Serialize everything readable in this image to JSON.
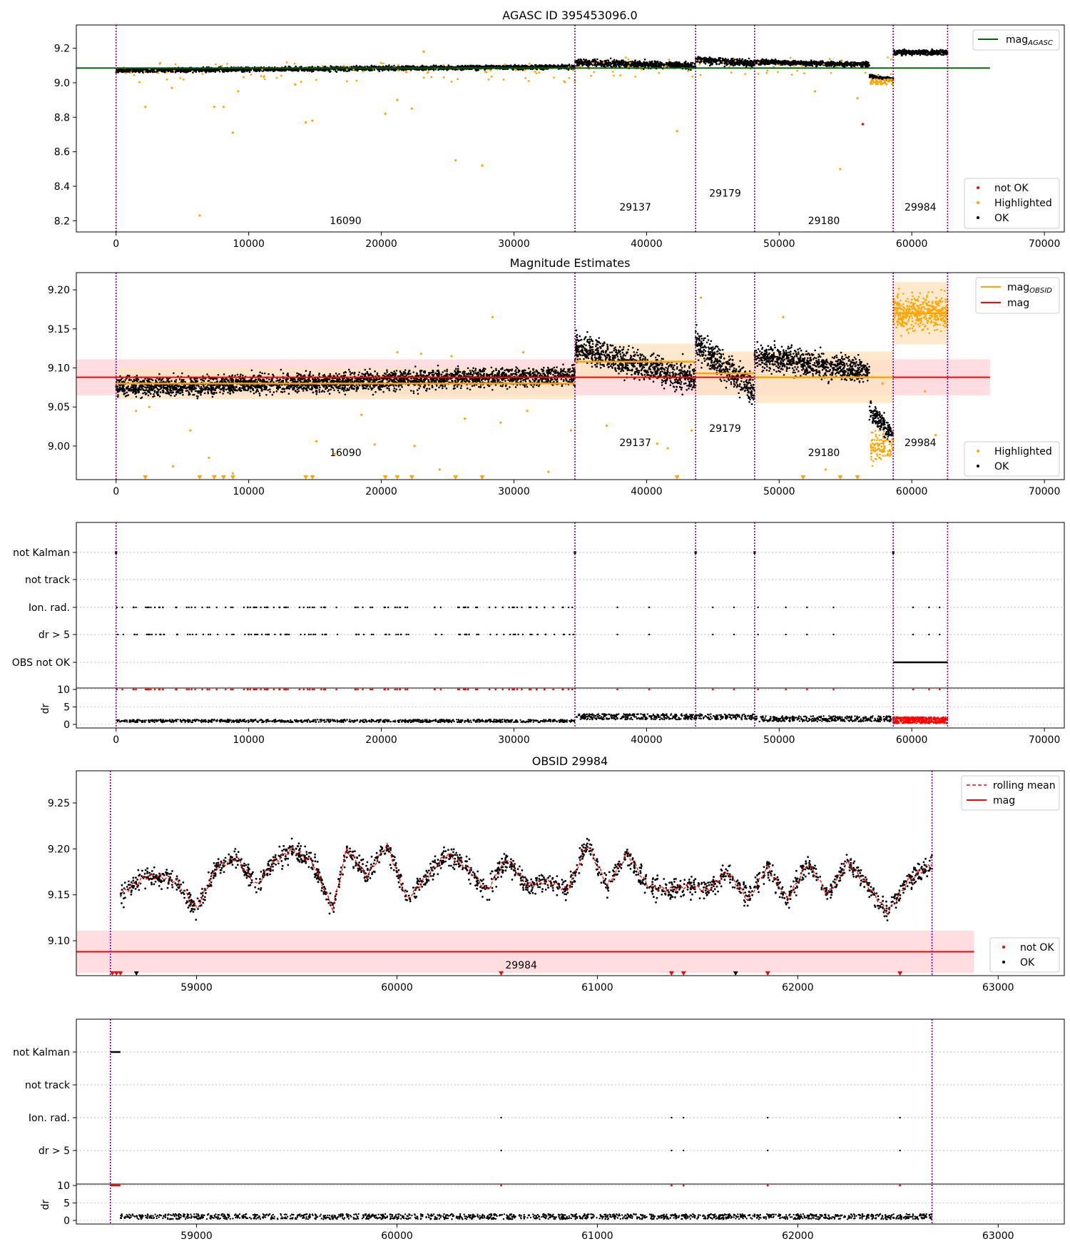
{
  "figure": {
    "title_top": "AGASC ID 395453096.0",
    "title_mag": "Magnitude Estimates",
    "title_obsid": "OBSID 29984"
  },
  "legend": {
    "mag_agasc": "mag",
    "mag_agasc_sub": "AGASC",
    "mag_obsid": "mag",
    "mag_obsid_sub": "OBSID",
    "mag": "mag",
    "not_ok": "not OK",
    "highlighted": "Highlighted",
    "ok": "OK",
    "rolling_mean": "rolling mean"
  },
  "colors": {
    "ok": "#000000",
    "highlighted": "#ffa500",
    "not_ok": "#ff0000",
    "agasc_line": "#006400",
    "mag_line": "#ff0000",
    "obsid_line": "#ffa500",
    "obs_boundary": "#800080",
    "mag_band": "#ffdde0"
  },
  "flags": {
    "labels": [
      "not Kalman",
      "not track",
      "Ion. rad.",
      "dr > 5",
      "OBS not OK"
    ],
    "labels_zoom": [
      "not Kalman",
      "not track",
      "Ion. rad.",
      "dr > 5"
    ],
    "dr_label": "dr"
  },
  "chart_data": [
    {
      "type": "scatter",
      "title": "AGASC ID 395453096.0",
      "xlabel": "",
      "ylabel": "",
      "xlim": [
        -3000,
        71500
      ],
      "ylim": [
        8.135,
        9.335
      ],
      "xticks": [
        0,
        10000,
        20000,
        30000,
        40000,
        50000,
        60000,
        70000
      ],
      "yticks": [
        8.2,
        8.4,
        8.6,
        8.8,
        9.0,
        9.2
      ],
      "ytick_labels": [
        "8.2",
        "8.4",
        "8.6",
        "8.8",
        "9.0",
        "9.2"
      ],
      "mag_agasc": 9.085,
      "obs_boundaries": [
        0,
        34600,
        43700,
        48150,
        58600,
        62700
      ],
      "observations": [
        {
          "obsid": "16090",
          "start": 0,
          "stop": 34600,
          "mag": 9.08,
          "label_y": 8.18
        },
        {
          "obsid": "29137",
          "start": 34600,
          "stop": 43700,
          "mag": 9.108,
          "label_y": 8.26
        },
        {
          "obsid": "29179",
          "start": 43700,
          "stop": 48150,
          "mag": 9.093,
          "label_y": 8.34
        },
        {
          "obsid": "29180",
          "start": 48150,
          "stop": 58600,
          "mag": 9.088,
          "label_y": 8.18
        },
        {
          "obsid": "29984",
          "start": 58600,
          "stop": 62700,
          "mag": 9.17,
          "label_y": 8.26
        }
      ],
      "highlighted_outliers": [
        {
          "x": 2200,
          "y": 8.86
        },
        {
          "x": 6300,
          "y": 8.23
        },
        {
          "x": 7400,
          "y": 8.86
        },
        {
          "x": 8100,
          "y": 8.86
        },
        {
          "x": 8800,
          "y": 8.71
        },
        {
          "x": 9200,
          "y": 8.95
        },
        {
          "x": 14300,
          "y": 8.77
        },
        {
          "x": 14800,
          "y": 8.78
        },
        {
          "x": 20300,
          "y": 8.82
        },
        {
          "x": 21200,
          "y": 8.9
        },
        {
          "x": 22300,
          "y": 8.85
        },
        {
          "x": 25600,
          "y": 8.55
        },
        {
          "x": 27600,
          "y": 8.52
        },
        {
          "x": 42300,
          "y": 8.72
        },
        {
          "x": 54600,
          "y": 8.5
        },
        {
          "x": 55900,
          "y": 8.91
        },
        {
          "x": 4200,
          "y": 8.97
        },
        {
          "x": 52700,
          "y": 8.95
        },
        {
          "x": 13500,
          "y": 8.99
        },
        {
          "x": 23200,
          "y": 9.18
        }
      ],
      "not_ok_points": [
        {
          "x": 56300,
          "y": 8.76
        }
      ]
    },
    {
      "type": "scatter",
      "title": "Magnitude Estimates",
      "xlim": [
        -3000,
        71500
      ],
      "ylim": [
        8.957,
        9.222
      ],
      "xticks": [
        0,
        10000,
        20000,
        30000,
        40000,
        50000,
        60000,
        70000
      ],
      "yticks": [
        9.0,
        9.05,
        9.1,
        9.15,
        9.2
      ],
      "ytick_labels": [
        "9.00",
        "9.05",
        "9.10",
        "9.15",
        "9.20"
      ],
      "mag": 9.088,
      "mag_err": 0.023,
      "observations": [
        {
          "obsid": "16090",
          "mag": 9.08,
          "err": 0.02,
          "label_y": 8.987
        },
        {
          "obsid": "29137",
          "mag": 9.108,
          "err": 0.023,
          "label_y": 9.0
        },
        {
          "obsid": "29179",
          "mag": 9.093,
          "err": 0.028,
          "label_y": 9.018
        },
        {
          "obsid": "29180",
          "mag": 9.088,
          "err": 0.033,
          "label_y": 8.987
        },
        {
          "obsid": "29984",
          "mag": 9.17,
          "err": 0.04,
          "label_y": 9.0
        }
      ],
      "highlighted_outliers": [
        {
          "x": 1500,
          "y": 9.045
        },
        {
          "x": 2500,
          "y": 9.05
        },
        {
          "x": 4300,
          "y": 8.974
        },
        {
          "x": 5600,
          "y": 9.02
        },
        {
          "x": 7000,
          "y": 8.985
        },
        {
          "x": 8800,
          "y": 8.965
        },
        {
          "x": 15100,
          "y": 9.006
        },
        {
          "x": 16500,
          "y": 8.99
        },
        {
          "x": 18500,
          "y": 9.04
        },
        {
          "x": 19500,
          "y": 9.002
        },
        {
          "x": 22500,
          "y": 9.0
        },
        {
          "x": 24400,
          "y": 8.97
        },
        {
          "x": 26300,
          "y": 9.035
        },
        {
          "x": 29000,
          "y": 9.03
        },
        {
          "x": 31000,
          "y": 9.045
        },
        {
          "x": 32600,
          "y": 8.967
        },
        {
          "x": 21200,
          "y": 9.12
        },
        {
          "x": 23000,
          "y": 9.118
        },
        {
          "x": 25300,
          "y": 9.115
        },
        {
          "x": 28400,
          "y": 9.165
        },
        {
          "x": 30700,
          "y": 9.12
        },
        {
          "x": 34300,
          "y": 9.02
        },
        {
          "x": 37000,
          "y": 9.026
        },
        {
          "x": 40800,
          "y": 9.003
        },
        {
          "x": 41600,
          "y": 8.997
        },
        {
          "x": 43400,
          "y": 9.02
        },
        {
          "x": 44100,
          "y": 9.19
        },
        {
          "x": 50300,
          "y": 9.165
        },
        {
          "x": 53500,
          "y": 8.97
        },
        {
          "x": 57800,
          "y": 9.08
        },
        {
          "x": 61000,
          "y": 9.07
        },
        {
          "x": 61800,
          "y": 9.014
        }
      ],
      "below_range_markers": [
        2200,
        6300,
        7400,
        8100,
        8800,
        14300,
        14800,
        20300,
        21200,
        22300,
        25600,
        27600,
        42300,
        51800,
        54600,
        55900
      ]
    },
    {
      "type": "scatter",
      "title": "",
      "xlim": [
        -3000,
        71500
      ],
      "flag_rows": [
        "not Kalman",
        "not track",
        "Ion. rad.",
        "dr > 5",
        "OBS not OK"
      ],
      "dr_ylim": [
        0,
        10
      ],
      "dr_yticks": [
        0,
        5,
        10
      ],
      "xticks": [
        0,
        10000,
        20000,
        30000,
        40000,
        50000,
        60000,
        70000
      ]
    },
    {
      "type": "line",
      "title": "OBSID 29984",
      "xlim": [
        58400,
        63330
      ],
      "ylim": [
        9.062,
        9.285
      ],
      "xticks": [
        59000,
        60000,
        61000,
        62000,
        63000
      ],
      "yticks": [
        9.1,
        9.15,
        9.2,
        9.25
      ],
      "ytick_labels": [
        "9.10",
        "9.15",
        "9.20",
        "9.25"
      ],
      "mag": 9.088,
      "mag_err": 0.023,
      "obsid_label": "29984",
      "obs_start": 58570,
      "obs_stop": 62670,
      "series": [
        {
          "name": "rolling mean",
          "x": [
            58620,
            58680,
            58750,
            58820,
            58900,
            59000,
            59100,
            59200,
            59300,
            59380,
            59480,
            59580,
            59680,
            59750,
            59850,
            59950,
            60050,
            60150,
            60250,
            60350,
            60450,
            60550,
            60650,
            60750,
            60850,
            60950,
            61050,
            61150,
            61250,
            61350,
            61450,
            61550,
            61650,
            61750,
            61850,
            61950,
            62050,
            62150,
            62250,
            62350,
            62450,
            62550,
            62670
          ],
          "values": [
            9.15,
            9.16,
            9.17,
            9.17,
            9.165,
            9.135,
            9.18,
            9.19,
            9.16,
            9.185,
            9.2,
            9.185,
            9.135,
            9.2,
            9.17,
            9.205,
            9.145,
            9.17,
            9.195,
            9.18,
            9.155,
            9.19,
            9.16,
            9.165,
            9.155,
            9.205,
            9.16,
            9.195,
            9.16,
            9.155,
            9.16,
            9.155,
            9.175,
            9.145,
            9.18,
            9.145,
            9.185,
            9.15,
            9.185,
            9.16,
            9.13,
            9.165,
            9.185
          ]
        }
      ],
      "below_range_markers_red": [
        58580,
        58600,
        58620,
        60520,
        61370,
        61430,
        61850,
        62510
      ],
      "below_range_markers_black": [
        58700,
        61690
      ]
    },
    {
      "type": "scatter",
      "title": "",
      "xlim": [
        58400,
        63330
      ],
      "flag_rows": [
        "not Kalman",
        "not track",
        "Ion. rad.",
        "dr > 5"
      ],
      "dr_ylim": [
        0,
        10
      ],
      "dr_yticks": [
        0,
        5,
        10
      ],
      "xticks": [
        59000,
        60000,
        61000,
        62000,
        63000
      ]
    }
  ]
}
